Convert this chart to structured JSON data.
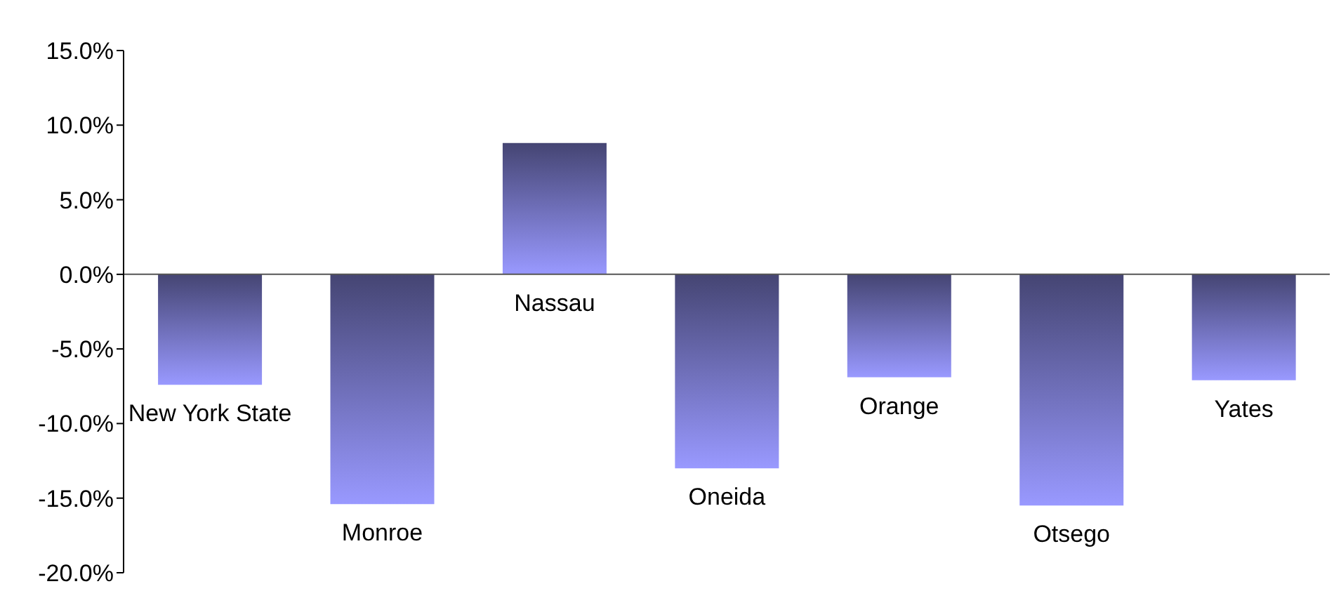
{
  "chart_data": {
    "type": "bar",
    "categories": [
      "New York State",
      "Monroe",
      "Nassau",
      "Oneida",
      "Orange",
      "Otsego",
      "Yates"
    ],
    "values": [
      -7.4,
      -15.4,
      8.8,
      -13.0,
      -6.9,
      -15.5,
      -7.1
    ],
    "color": "#9999ff",
    "ylim": [
      -20,
      15
    ],
    "yticks": [
      {
        "value": -20,
        "label": "-20.0%"
      },
      {
        "value": -15,
        "label": "-15.0%"
      },
      {
        "value": -10,
        "label": "-10.0%"
      },
      {
        "value": -5,
        "label": "-5.0%"
      },
      {
        "value": 0,
        "label": "0.0%"
      },
      {
        "value": 5,
        "label": "5.0%"
      },
      {
        "value": 10,
        "label": "10.0%"
      },
      {
        "value": 15,
        "label": "15.0%"
      }
    ],
    "ref_lines": [
      {
        "axis": "y",
        "value": 0,
        "color": "#555555"
      }
    ],
    "grid": false,
    "legend": false
  }
}
